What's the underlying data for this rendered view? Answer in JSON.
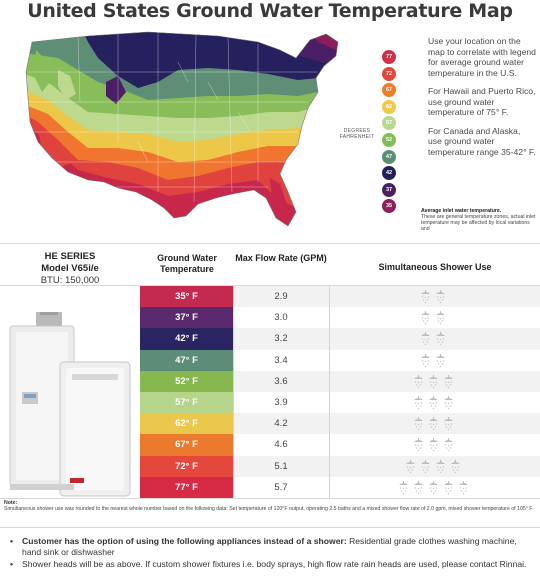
{
  "title": "United States Ground Water Temperature Map",
  "map": {
    "degrees_label": "DEGREES FAHRENHEIT",
    "zone_colors": {
      "77": "#c6274b",
      "72": "#e0423d",
      "67": "#f0752e",
      "62": "#edc747",
      "57": "#bcd98e",
      "52": "#88bd5a",
      "47": "#5f8e76",
      "42": "#25205e",
      "37": "#4b1f66",
      "35": "#8a1d5c"
    }
  },
  "legend": [
    {
      "value": "77",
      "color": "#d32f49"
    },
    {
      "value": "72",
      "color": "#e2473b"
    },
    {
      "value": "67",
      "color": "#ef7b2c"
    },
    {
      "value": "62",
      "color": "#f0c94a"
    },
    {
      "value": "57",
      "color": "#b8d890"
    },
    {
      "value": "52",
      "color": "#86bc58"
    },
    {
      "value": "47",
      "color": "#5b8f73"
    },
    {
      "value": "42",
      "color": "#24205a"
    },
    {
      "value": "37",
      "color": "#4a2163"
    },
    {
      "value": "35",
      "color": "#8c1f5c"
    }
  ],
  "info": {
    "p1": "Use your location on the map to correlate with legend for average ground water temperature in the U.S.",
    "p2": "For Hawaii and Puerto Rico, use ground water temperature of 75° F.",
    "p3": "For Canada and Alaska, use ground water temperature range 35-42° F.",
    "fine_title": "Average inlet water temperature.",
    "fine_text": "These are general temperature zones, actual inlet temperature may be affected by local variations and"
  },
  "series": {
    "name": "HE SERIES",
    "model": "Model V65i/e",
    "btu": "BTU: 150,000"
  },
  "table": {
    "headers": {
      "temp": "Ground Water Temperature",
      "flow": "Max Flow Rate (GPM)",
      "shower": "Simultaneous Shower Use"
    },
    "rows": [
      {
        "temp": "35° F",
        "flow": "2.9",
        "showers": 2,
        "color": "#c42a50"
      },
      {
        "temp": "37° F",
        "flow": "3.0",
        "showers": 2,
        "color": "#5b2a6e"
      },
      {
        "temp": "42° F",
        "flow": "3.2",
        "showers": 2,
        "color": "#2a2463"
      },
      {
        "temp": "47° F",
        "flow": "3.4",
        "showers": 2,
        "color": "#5e8d77"
      },
      {
        "temp": "52° F",
        "flow": "3.6",
        "showers": 3,
        "color": "#86b84f"
      },
      {
        "temp": "57° F",
        "flow": "3.9",
        "showers": 3,
        "color": "#b6d48a"
      },
      {
        "temp": "62° F",
        "flow": "4.2",
        "showers": 3,
        "color": "#e9c84b"
      },
      {
        "temp": "67° F",
        "flow": "4.6",
        "showers": 3,
        "color": "#ec7a2e"
      },
      {
        "temp": "72° F",
        "flow": "5.1",
        "showers": 4,
        "color": "#e5473c"
      },
      {
        "temp": "77° F",
        "flow": "5.7",
        "showers": 5,
        "color": "#d62a45"
      }
    ]
  },
  "note": {
    "label": "Note:",
    "text": "Simultaneous shower use was rounded to the nearest whole number based on the following data: Set temperature of 120°F output, operating 2.5 baths and a mixed shower flow rate of 2.0 gpm, mixed shower temperature of 105° F."
  },
  "bullets": [
    {
      "strong": "Customer has the option of using the following appliances instead of a shower:",
      "text": " Residential grade clothes washing machine, hand sink or dishwasher"
    },
    {
      "strong": "",
      "text": "Shower heads will be as above. If custom shower fixtures  i.e. body sprays, high flow rate rain heads are used, please contact Rinnai."
    }
  ]
}
